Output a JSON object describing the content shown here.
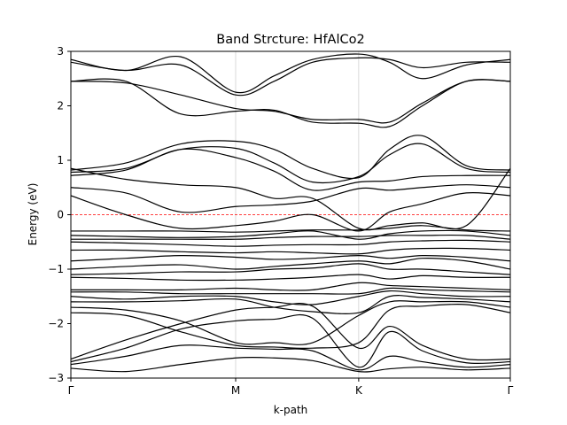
{
  "chart_data": {
    "type": "line",
    "title": "Band Strcture: HfAlCo2",
    "xlabel": "k-path",
    "ylabel": "Energy (eV)",
    "xlim": [
      0,
      4
    ],
    "ylim": [
      -3,
      3
    ],
    "grid": "vertical lines at high-symmetry points",
    "high_symmetry_points": [
      {
        "label": "Γ",
        "x": 0
      },
      {
        "label": "M",
        "x": 1.5
      },
      {
        "label": "K",
        "x": 2.62
      },
      {
        "label": "Γ",
        "x": 4
      }
    ],
    "yticks": [
      {
        "value": -3,
        "label": "−3"
      },
      {
        "value": -2,
        "label": "−2"
      },
      {
        "value": -1,
        "label": "−1"
      },
      {
        "value": 0,
        "label": "0"
      },
      {
        "value": 1,
        "label": "1"
      },
      {
        "value": 2,
        "label": "2"
      },
      {
        "value": 3,
        "label": "3"
      }
    ],
    "fermi_level": 0,
    "colors": {
      "bands": "#000000",
      "fermi": "#ff0000",
      "grid": "#d0d0d0"
    },
    "x": [
      0,
      0.5,
      1.0,
      1.5,
      1.85,
      2.2,
      2.62,
      2.9,
      3.2,
      3.6,
      4.0
    ],
    "series": [
      {
        "values": [
          -2.82,
          -2.88,
          -2.75,
          -2.63,
          -2.63,
          -2.68,
          -2.88,
          -2.83,
          -2.8,
          -2.85,
          -2.82
        ]
      },
      {
        "values": [
          -2.75,
          -2.6,
          -2.4,
          -2.45,
          -2.47,
          -2.5,
          -2.85,
          -2.6,
          -2.7,
          -2.8,
          -2.75
        ]
      },
      {
        "values": [
          -2.7,
          -2.45,
          -2.1,
          -1.95,
          -1.92,
          -1.9,
          -2.8,
          -2.15,
          -2.5,
          -2.72,
          -2.7
        ]
      },
      {
        "values": [
          -2.65,
          -2.3,
          -2.0,
          -1.75,
          -1.7,
          -1.68,
          -2.45,
          -2.05,
          -2.4,
          -2.65,
          -2.65
        ]
      },
      {
        "values": [
          -1.8,
          -1.85,
          -2.15,
          -2.4,
          -2.43,
          -2.45,
          -2.35,
          -1.75,
          -1.68,
          -1.65,
          -1.8
        ]
      },
      {
        "values": [
          -1.7,
          -1.75,
          -1.95,
          -2.35,
          -2.35,
          -2.35,
          -1.85,
          -1.6,
          -1.6,
          -1.6,
          -1.7
        ]
      },
      {
        "values": [
          -1.6,
          -1.6,
          -1.58,
          -1.55,
          -1.7,
          -1.78,
          -1.8,
          -1.5,
          -1.52,
          -1.55,
          -1.6
        ]
      },
      {
        "values": [
          -1.5,
          -1.55,
          -1.5,
          -1.5,
          -1.6,
          -1.65,
          -1.5,
          -1.4,
          -1.45,
          -1.5,
          -1.5
        ]
      },
      {
        "values": [
          -1.42,
          -1.42,
          -1.45,
          -1.45,
          -1.45,
          -1.45,
          -1.45,
          -1.35,
          -1.38,
          -1.4,
          -1.42
        ]
      },
      {
        "values": [
          -1.38,
          -1.38,
          -1.38,
          -1.35,
          -1.38,
          -1.38,
          -1.25,
          -1.3,
          -1.32,
          -1.35,
          -1.38
        ]
      },
      {
        "values": [
          -1.15,
          -1.17,
          -1.2,
          -1.2,
          -1.18,
          -1.15,
          -1.1,
          -1.18,
          -1.12,
          -1.15,
          -1.15
        ]
      },
      {
        "values": [
          -1.1,
          -1.08,
          -1.05,
          -1.05,
          -1.0,
          -0.98,
          -0.9,
          -1.0,
          -1.0,
          -1.05,
          -1.1
        ]
      },
      {
        "values": [
          -1.0,
          -0.95,
          -0.92,
          -1.0,
          -0.95,
          -0.9,
          -0.85,
          -0.9,
          -0.8,
          -0.85,
          -1.0
        ]
      },
      {
        "values": [
          -0.85,
          -0.8,
          -0.75,
          -0.78,
          -0.82,
          -0.8,
          -0.75,
          -0.8,
          -0.75,
          -0.78,
          -0.85
        ]
      },
      {
        "values": [
          -0.65,
          -0.65,
          -0.68,
          -0.7,
          -0.68,
          -0.7,
          -0.72,
          -0.65,
          -0.62,
          -0.62,
          -0.65
        ]
      },
      {
        "values": [
          -0.5,
          -0.52,
          -0.55,
          -0.58,
          -0.56,
          -0.55,
          -0.55,
          -0.5,
          -0.48,
          -0.47,
          -0.5
        ]
      },
      {
        "values": [
          -0.45,
          -0.45,
          -0.45,
          -0.45,
          -0.42,
          -0.4,
          -0.4,
          -0.38,
          -0.38,
          -0.38,
          -0.45
        ]
      },
      {
        "values": [
          -0.38,
          -0.4,
          -0.42,
          -0.4,
          -0.35,
          -0.3,
          -0.45,
          -0.35,
          -0.3,
          -0.3,
          -0.38
        ]
      },
      {
        "values": [
          -0.3,
          -0.3,
          -0.3,
          -0.32,
          -0.3,
          -0.28,
          -0.28,
          -0.25,
          -0.2,
          -0.28,
          -0.3
        ]
      },
      {
        "values": [
          0.35,
          0.0,
          -0.25,
          -0.2,
          -0.12,
          0.0,
          -0.3,
          0.05,
          0.2,
          0.4,
          0.35
        ]
      },
      {
        "values": [
          0.5,
          0.4,
          0.05,
          0.15,
          0.18,
          0.25,
          0.48,
          0.45,
          0.5,
          0.55,
          0.5
        ]
      },
      {
        "values": [
          0.85,
          0.65,
          0.55,
          0.5,
          0.3,
          0.3,
          -0.25,
          -0.2,
          -0.15,
          -0.2,
          0.85
        ]
      },
      {
        "values": [
          0.72,
          0.82,
          1.2,
          1.05,
          0.8,
          0.45,
          0.6,
          0.62,
          0.7,
          0.72,
          0.72
        ]
      },
      {
        "values": [
          0.78,
          0.85,
          1.2,
          1.22,
          0.95,
          0.6,
          0.7,
          1.1,
          1.3,
          0.85,
          0.78
        ]
      },
      {
        "values": [
          0.82,
          0.95,
          1.3,
          1.35,
          1.2,
          0.85,
          0.68,
          1.2,
          1.45,
          0.9,
          0.82
        ]
      },
      {
        "values": [
          2.45,
          2.45,
          1.85,
          1.9,
          1.92,
          1.7,
          1.68,
          1.62,
          2.0,
          2.45,
          2.45
        ]
      },
      {
        "values": [
          2.45,
          2.42,
          2.2,
          1.95,
          1.9,
          1.75,
          1.75,
          1.7,
          2.05,
          2.45,
          2.45
        ]
      },
      {
        "values": [
          2.85,
          2.65,
          2.9,
          2.25,
          2.55,
          2.85,
          2.95,
          2.8,
          2.5,
          2.75,
          2.85
        ]
      },
      {
        "values": [
          2.8,
          2.65,
          2.75,
          2.2,
          2.45,
          2.8,
          2.88,
          2.85,
          2.7,
          2.8,
          2.8
        ]
      }
    ]
  }
}
